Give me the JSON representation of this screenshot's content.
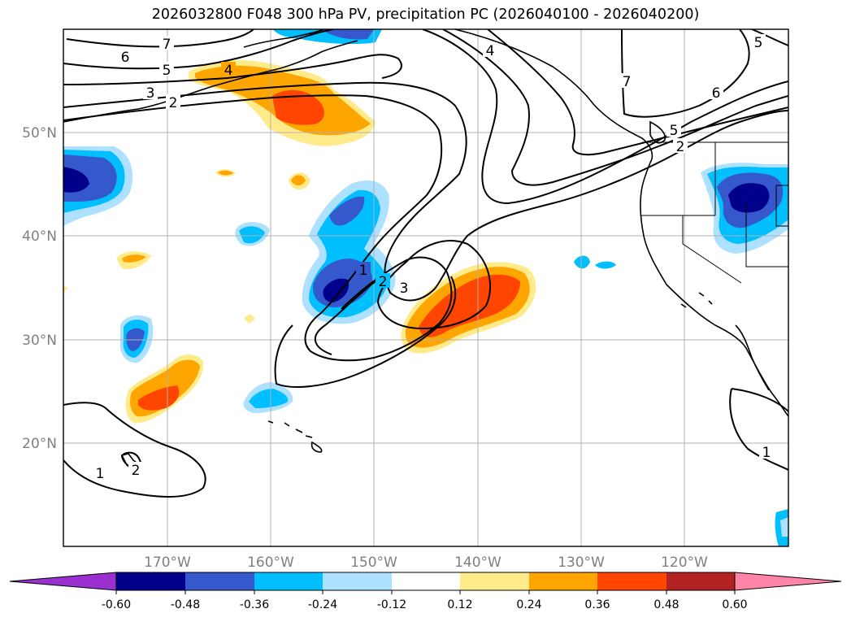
{
  "title": "2026032800 F048 300 hPa PV, precipitation PC (2026040100 - 2026040200)",
  "map": {
    "lat_labels": [
      "50°N",
      "40°N",
      "30°N",
      "20°N"
    ],
    "lon_labels": [
      "170°W",
      "160°W",
      "150°W",
      "140°W",
      "130°W",
      "120°W"
    ],
    "lat_values": [
      50,
      40,
      30,
      20
    ],
    "lon_values": [
      -170,
      -160,
      -150,
      -140,
      -130,
      -120
    ],
    "extent": {
      "lon_min": -180,
      "lon_max": -110,
      "lat_min": 10,
      "lat_max": 60
    }
  },
  "pv_contour_labels": [
    "7",
    "6",
    "5",
    "4",
    "3",
    "2",
    "4",
    "7",
    "6",
    "5",
    "2",
    "5",
    "1",
    "2",
    "3",
    "1",
    "2",
    "1"
  ],
  "colorbar": {
    "ticks": [
      "-0.60",
      "-0.48",
      "-0.36",
      "-0.24",
      "-0.12",
      "0.12",
      "0.24",
      "0.36",
      "0.48",
      "0.60"
    ],
    "colors": [
      "#9b30d0",
      "#00008b",
      "#3558cc",
      "#00bfff",
      "#aee0ff",
      "#ffffff",
      "#ffeb8a",
      "#ffa500",
      "#ff4500",
      "#b22222",
      "#ff85a8"
    ]
  }
}
